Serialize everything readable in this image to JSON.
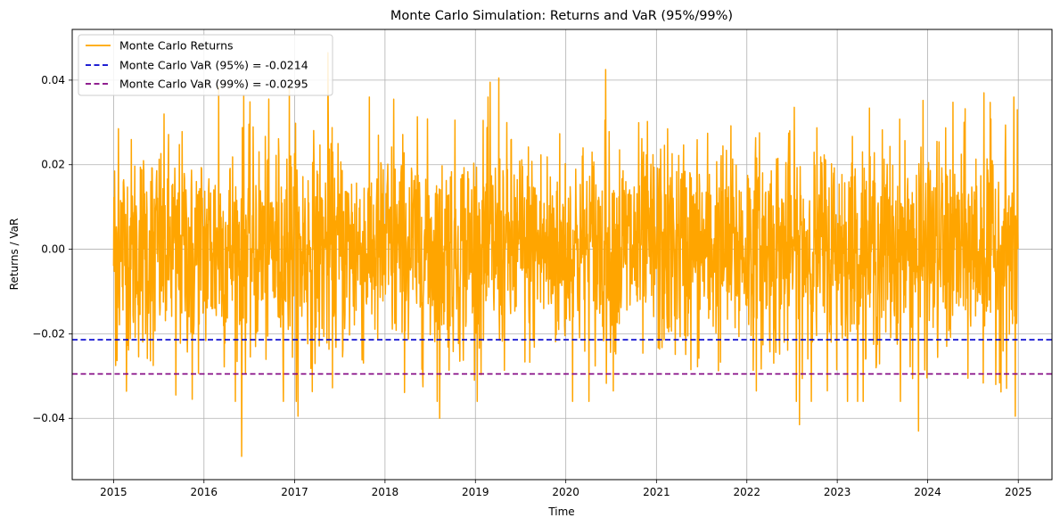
{
  "chart_data": {
    "type": "line",
    "title": "Monte Carlo Simulation: Returns and VaR (95%/99%)",
    "xlabel": "Time",
    "ylabel": "Returns / VaR",
    "xlim": [
      "2014-07-18",
      "2025-05-17"
    ],
    "ylim": [
      -0.0545,
      0.052
    ],
    "x_ticks": [
      "2015",
      "2016",
      "2017",
      "2018",
      "2019",
      "2020",
      "2021",
      "2022",
      "2023",
      "2024",
      "2025"
    ],
    "y_ticks": [
      "-0.04",
      "-0.02",
      "0.00",
      "0.02",
      "0.04"
    ],
    "grid": true,
    "legend_position": "top-left",
    "series": [
      {
        "name": "Monte Carlo Returns",
        "color": "#ffa500",
        "style": "solid",
        "x_start": "2015-01-01",
        "x_end": "2024-12-31",
        "points": 2600,
        "values_description_note": null,
        "sampled_points": [
          [
            "2015-01-05",
            0.0185
          ],
          [
            "2015-01-10",
            -0.0275
          ],
          [
            "2015-01-20",
            0.0285
          ],
          [
            "2015-06-10",
            -0.0275
          ],
          [
            "2015-09-10",
            -0.0345
          ],
          [
            "2015-11-15",
            -0.0355
          ],
          [
            "2016-03-01",
            0.0385
          ],
          [
            "2016-06-01",
            -0.049
          ],
          [
            "2016-06-10",
            0.0365
          ],
          [
            "2016-12-10",
            0.0385
          ],
          [
            "2017-01-15",
            -0.0395
          ],
          [
            "2017-05-15",
            0.0465
          ],
          [
            "2018-02-05",
            0.0355
          ],
          [
            "2018-08-10",
            -0.04
          ],
          [
            "2019-03-01",
            0.0395
          ],
          [
            "2019-04-05",
            0.0405
          ],
          [
            "2020-06-10",
            0.0425
          ],
          [
            "2022-08-01",
            -0.0415
          ],
          [
            "2023-11-25",
            -0.043
          ],
          [
            "2024-08-15",
            0.037
          ],
          [
            "2024-12-20",
            -0.0395
          ],
          [
            "2024-12-28",
            0.033
          ]
        ]
      },
      {
        "name": "Monte Carlo VaR (95%) = -0.0214",
        "color": "#0000cd",
        "style": "dashed",
        "value": -0.0214
      },
      {
        "name": "Monte Carlo VaR (99%) = -0.0295",
        "color": "#800080",
        "style": "dashed",
        "value": -0.0295
      }
    ]
  }
}
